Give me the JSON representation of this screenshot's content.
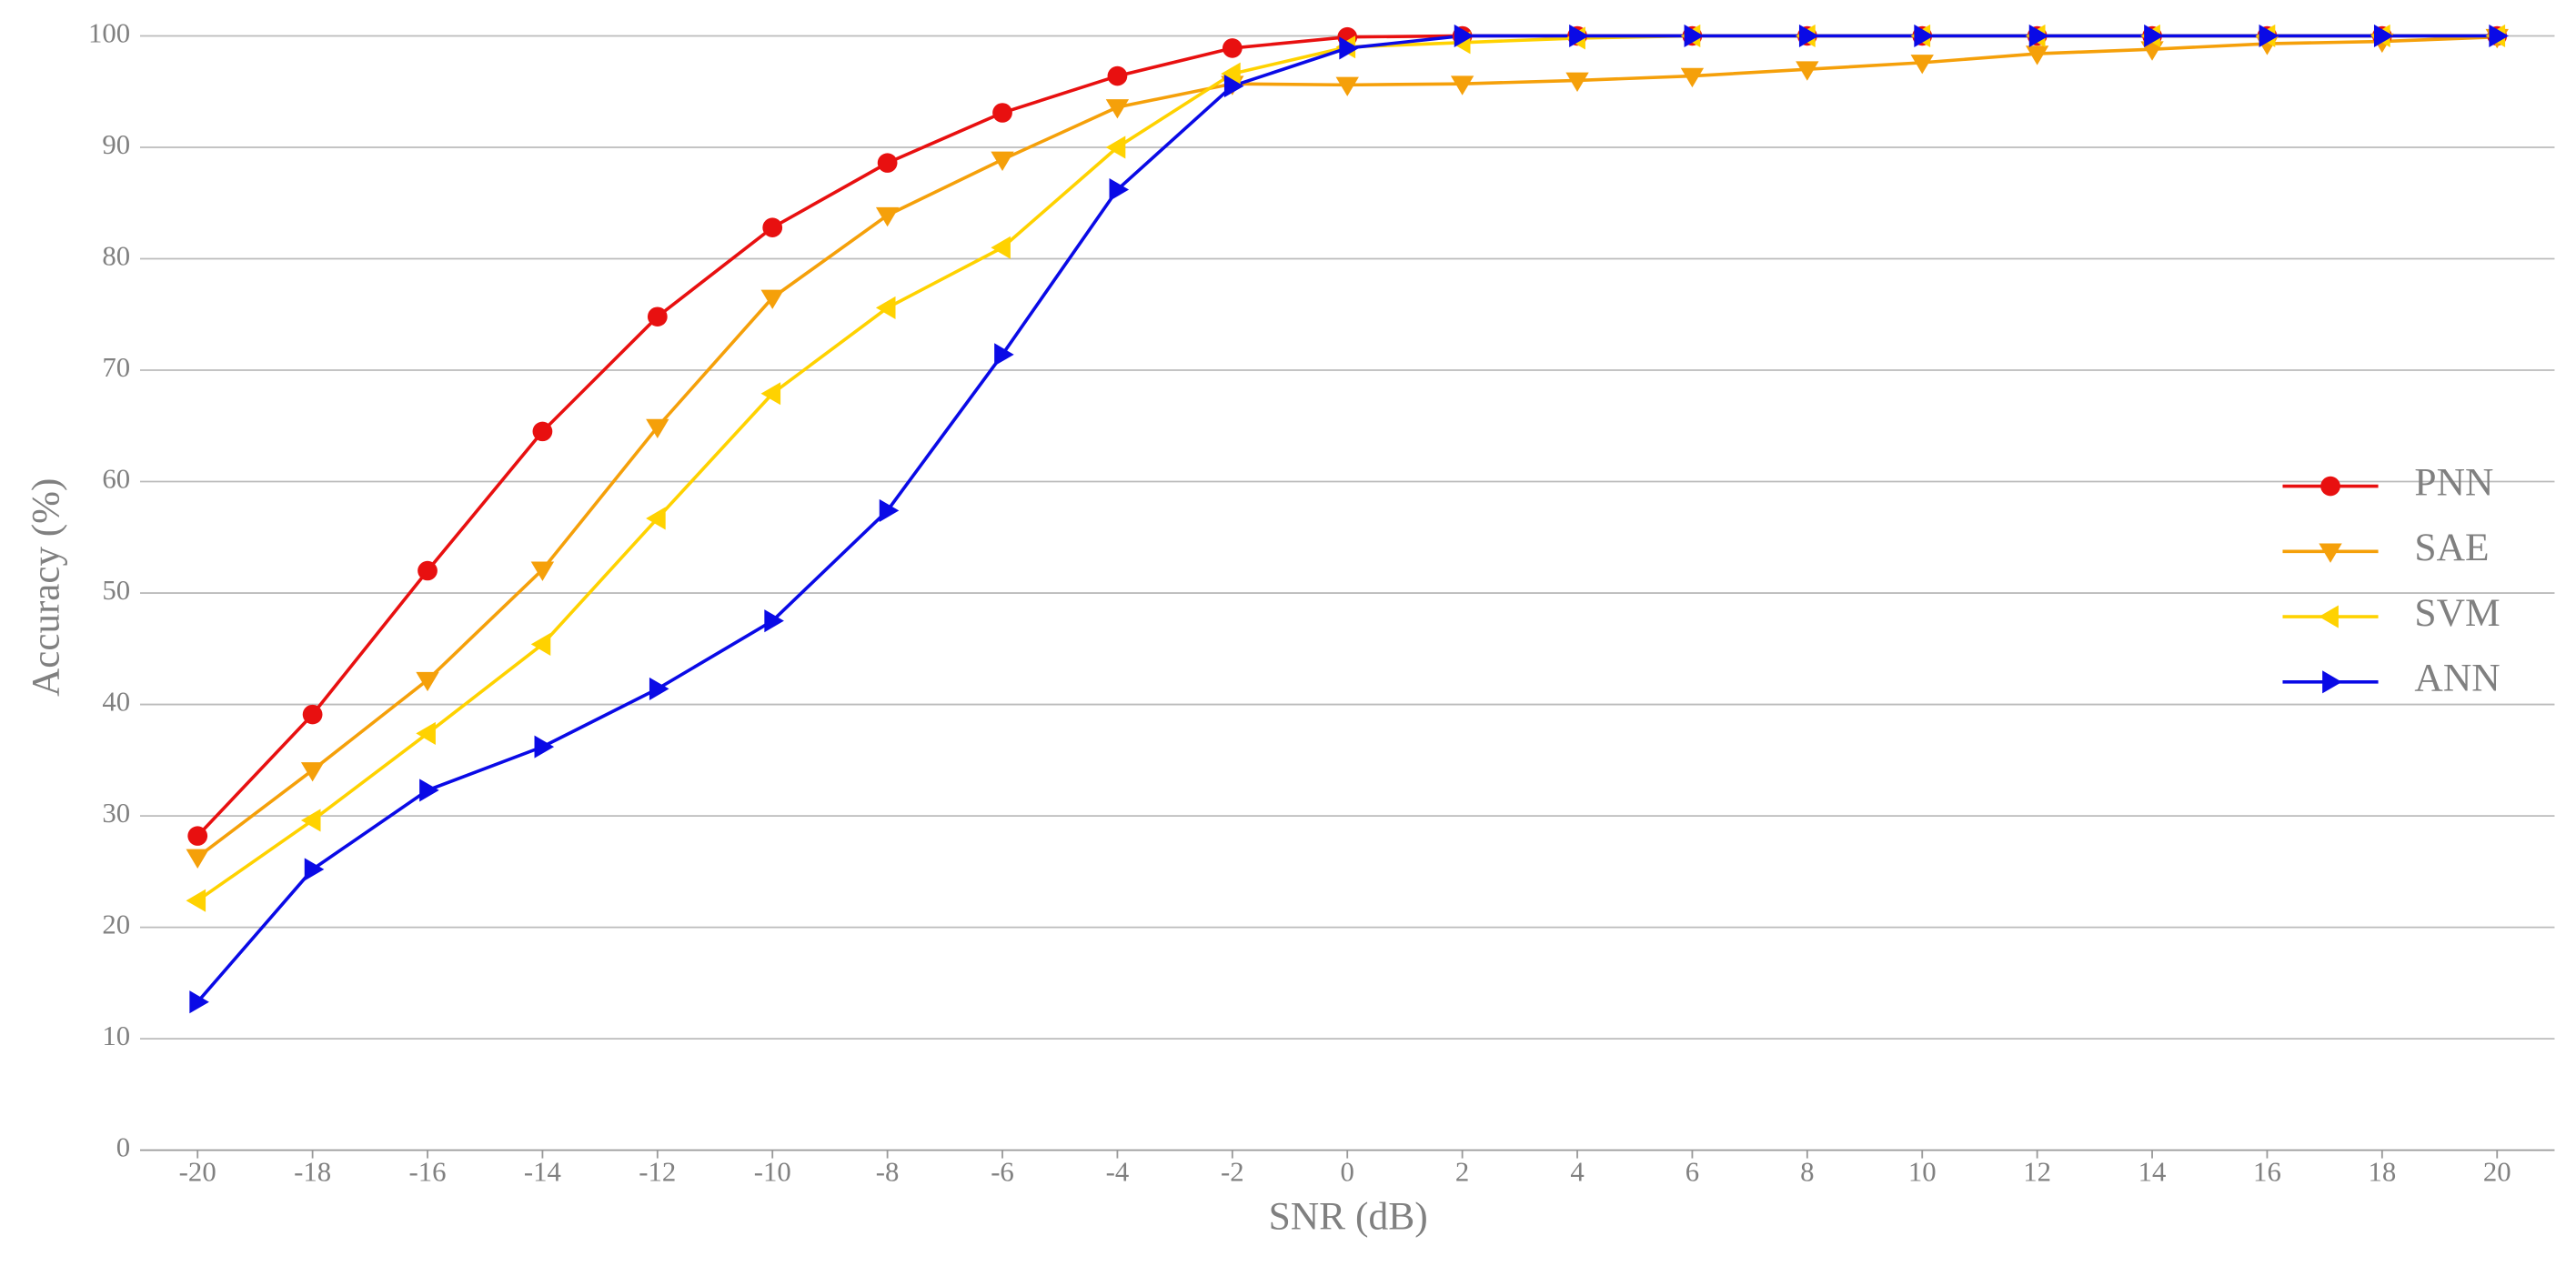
{
  "chart_data": {
    "type": "line",
    "x_label": "SNR (dB)",
    "y_label": "Accuracy (%)",
    "x": [
      -20,
      -18,
      -16,
      -14,
      -12,
      -10,
      -8,
      -6,
      -4,
      -2,
      0,
      2,
      4,
      6,
      8,
      10,
      12,
      14,
      16,
      18,
      20
    ],
    "xlim": [
      -21,
      21
    ],
    "xticks": [
      -20,
      -18,
      -16,
      -14,
      -12,
      -10,
      -8,
      -6,
      -4,
      -2,
      0,
      2,
      4,
      6,
      8,
      10,
      12,
      14,
      16,
      18,
      20
    ],
    "ylim": [
      0,
      100
    ],
    "yticks": [
      0,
      10,
      20,
      30,
      40,
      50,
      60,
      70,
      80,
      90,
      100
    ],
    "grid": true,
    "legend": "right",
    "series": [
      {
        "name": "PNN",
        "color": "#e81010",
        "marker": "circle",
        "values": [
          28.2,
          39.1,
          52.0,
          64.5,
          74.8,
          82.8,
          88.6,
          93.1,
          96.4,
          98.9,
          99.9,
          100,
          100,
          100,
          100,
          100,
          100,
          100,
          100,
          100,
          100
        ]
      },
      {
        "name": "SAE",
        "color": "#f5a00a",
        "marker": "triangle-down",
        "values": [
          26.3,
          34.1,
          42.2,
          52.1,
          64.9,
          76.5,
          83.9,
          88.9,
          93.6,
          95.7,
          95.6,
          95.7,
          96.0,
          96.4,
          97.0,
          97.6,
          98.4,
          98.8,
          99.3,
          99.5,
          99.9
        ]
      },
      {
        "name": "SVM",
        "color": "#ffd200",
        "marker": "triangle-left",
        "values": [
          22.4,
          29.6,
          37.4,
          45.4,
          56.7,
          67.9,
          75.6,
          81.0,
          90.0,
          96.6,
          99.0,
          99.4,
          99.8,
          100,
          100,
          100,
          100,
          100,
          100,
          100,
          100
        ]
      },
      {
        "name": "ANN",
        "color": "#0a0ae6",
        "marker": "triangle-right",
        "values": [
          13.3,
          25.2,
          32.3,
          36.2,
          41.4,
          47.5,
          57.4,
          71.4,
          86.2,
          95.5,
          98.9,
          100,
          100,
          100,
          100,
          100,
          100,
          100,
          100,
          100,
          100
        ]
      }
    ]
  }
}
